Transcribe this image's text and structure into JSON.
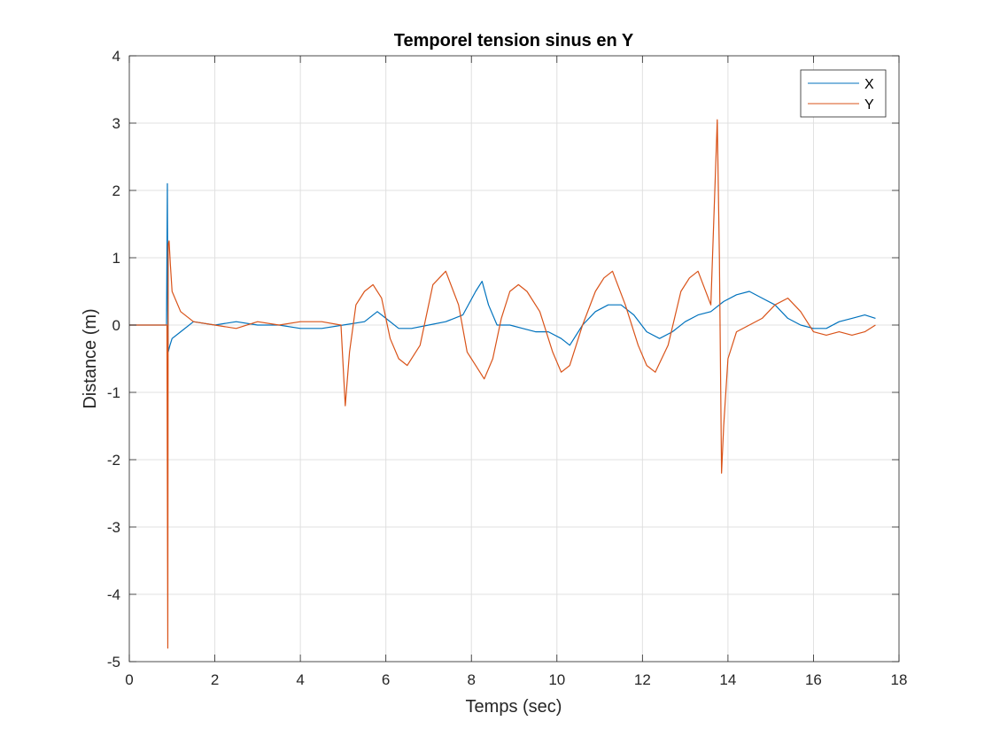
{
  "chart_data": {
    "type": "line",
    "title": "Temporel tension sinus en Y",
    "xlabel": "Temps (sec)",
    "ylabel": "Distance (m)",
    "xlim": [
      0,
      18
    ],
    "ylim": [
      -5,
      4
    ],
    "x_ticks": [
      "0",
      "2",
      "4",
      "6",
      "8",
      "10",
      "12",
      "14",
      "16",
      "18"
    ],
    "y_ticks": [
      "-5",
      "-4",
      "-3",
      "-2",
      "-1",
      "0",
      "1",
      "2",
      "3",
      "4"
    ],
    "grid": true,
    "legend_position": "top-right",
    "series": [
      {
        "name": "X",
        "color": "#0072BD",
        "x": [
          0,
          0.87,
          0.89,
          0.9,
          0.91,
          0.95,
          1.0,
          1.2,
          1.5,
          2.0,
          2.5,
          3.0,
          3.5,
          4.0,
          4.5,
          5.0,
          5.5,
          5.8,
          6.0,
          6.3,
          6.6,
          7.0,
          7.4,
          7.8,
          8.1,
          8.25,
          8.4,
          8.6,
          8.9,
          9.2,
          9.5,
          9.8,
          10.1,
          10.3,
          10.6,
          10.9,
          11.2,
          11.5,
          11.8,
          12.1,
          12.4,
          12.7,
          13.0,
          13.3,
          13.6,
          13.9,
          14.2,
          14.5,
          14.8,
          15.1,
          15.4,
          15.7,
          16.0,
          16.3,
          16.6,
          16.9,
          17.2,
          17.45
        ],
        "y": [
          0,
          0,
          2.1,
          0.2,
          -0.4,
          -0.3,
          -0.2,
          -0.1,
          0.05,
          0.0,
          0.05,
          0.0,
          0.0,
          -0.05,
          -0.05,
          0.0,
          0.05,
          0.2,
          0.1,
          -0.05,
          -0.05,
          0.0,
          0.05,
          0.15,
          0.5,
          0.65,
          0.3,
          0.0,
          0.0,
          -0.05,
          -0.1,
          -0.1,
          -0.2,
          -0.3,
          0.0,
          0.2,
          0.3,
          0.3,
          0.15,
          -0.1,
          -0.2,
          -0.1,
          0.05,
          0.15,
          0.2,
          0.35,
          0.45,
          0.5,
          0.4,
          0.3,
          0.1,
          0.0,
          -0.05,
          -0.05,
          0.05,
          0.1,
          0.15,
          0.1
        ]
      },
      {
        "name": "Y",
        "color": "#D95319",
        "x": [
          0,
          0.88,
          0.9,
          0.91,
          0.93,
          0.96,
          1.0,
          1.2,
          1.5,
          2.0,
          2.5,
          3.0,
          3.5,
          4.0,
          4.5,
          4.95,
          5.05,
          5.15,
          5.3,
          5.5,
          5.7,
          5.9,
          6.1,
          6.3,
          6.5,
          6.8,
          7.1,
          7.4,
          7.7,
          7.9,
          8.1,
          8.3,
          8.5,
          8.7,
          8.9,
          9.1,
          9.3,
          9.6,
          9.9,
          10.1,
          10.3,
          10.6,
          10.9,
          11.1,
          11.3,
          11.6,
          11.9,
          12.1,
          12.3,
          12.6,
          12.9,
          13.1,
          13.3,
          13.6,
          13.75,
          13.8,
          13.85,
          13.9,
          14.0,
          14.2,
          14.5,
          14.8,
          15.1,
          15.4,
          15.7,
          16.0,
          16.3,
          16.6,
          16.9,
          17.2,
          17.45
        ],
        "y": [
          0,
          0,
          -4.8,
          1.2,
          1.25,
          0.9,
          0.5,
          0.2,
          0.05,
          0.0,
          -0.05,
          0.05,
          0.0,
          0.05,
          0.05,
          0.0,
          -1.2,
          -0.4,
          0.3,
          0.5,
          0.6,
          0.4,
          -0.2,
          -0.5,
          -0.6,
          -0.3,
          0.6,
          0.8,
          0.3,
          -0.4,
          -0.6,
          -0.8,
          -0.5,
          0.1,
          0.5,
          0.6,
          0.5,
          0.2,
          -0.4,
          -0.7,
          -0.6,
          0.0,
          0.5,
          0.7,
          0.8,
          0.3,
          -0.3,
          -0.6,
          -0.7,
          -0.3,
          0.5,
          0.7,
          0.8,
          0.3,
          3.05,
          1.0,
          -2.2,
          -1.5,
          -0.5,
          -0.1,
          0.0,
          0.1,
          0.3,
          0.4,
          0.2,
          -0.1,
          -0.15,
          -0.1,
          -0.15,
          -0.1,
          0.0
        ]
      }
    ]
  }
}
